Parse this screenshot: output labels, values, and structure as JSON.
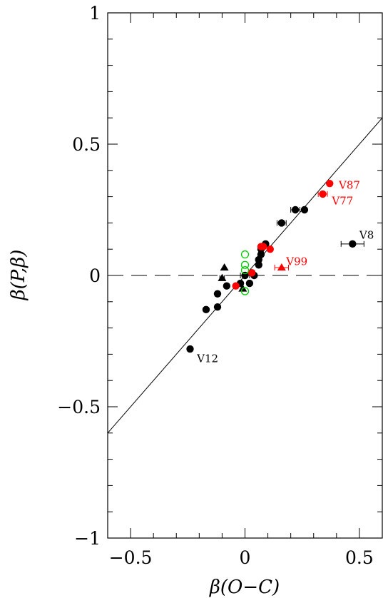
{
  "chart_data": {
    "type": "scatter",
    "title": "",
    "xlabel": "β(O−C)",
    "ylabel": "β(P,β)",
    "xlim": [
      -0.6,
      0.6
    ],
    "ylim": [
      -1,
      1
    ],
    "x_ticks": [
      -0.5,
      0,
      0.5
    ],
    "x_tick_labels": [
      "−0.5",
      "0",
      "0.5"
    ],
    "y_ticks": [
      -1,
      -0.5,
      0,
      0.5,
      1
    ],
    "y_tick_labels": [
      "−1",
      "−0.5",
      "0",
      "0.5",
      "1"
    ],
    "grid": false,
    "reference_lines": [
      {
        "kind": "identity",
        "style": "solid",
        "from": [
          -0.6,
          -0.6
        ],
        "to": [
          0.6,
          0.6
        ]
      },
      {
        "kind": "horizontal",
        "style": "dashed",
        "y": 0
      }
    ],
    "colors": {
      "black": "#000000",
      "red": "#ff0000",
      "green": "#00cc00"
    },
    "series": [
      {
        "marker": "filled-circle",
        "color": "#000000",
        "points": [
          {
            "x": -0.24,
            "y": -0.28
          },
          {
            "x": -0.17,
            "y": -0.13
          },
          {
            "x": -0.12,
            "y": -0.12
          },
          {
            "x": -0.12,
            "y": -0.07,
            "xerr": 0.01
          },
          {
            "x": -0.08,
            "y": -0.04
          },
          {
            "x": -0.02,
            "y": -0.03
          },
          {
            "x": 0.0,
            "y": 0.0,
            "xerr": 0.02
          },
          {
            "x": 0.02,
            "y": -0.03
          },
          {
            "x": 0.03,
            "y": 0.01
          },
          {
            "x": 0.04,
            "y": 0.0
          },
          {
            "x": 0.06,
            "y": 0.04
          },
          {
            "x": 0.06,
            "y": 0.06
          },
          {
            "x": 0.07,
            "y": 0.08
          },
          {
            "x": 0.07,
            "y": 0.1
          },
          {
            "x": 0.09,
            "y": 0.12
          },
          {
            "x": 0.16,
            "y": 0.2,
            "xerr": 0.02
          },
          {
            "x": 0.22,
            "y": 0.25,
            "xerr": 0.02
          },
          {
            "x": 0.26,
            "y": 0.25
          },
          {
            "x": 0.47,
            "y": 0.12,
            "xerr": 0.05
          }
        ]
      },
      {
        "marker": "filled-triangle",
        "color": "#000000",
        "points": [
          {
            "x": -0.09,
            "y": 0.03
          },
          {
            "x": -0.1,
            "y": -0.01,
            "xerr": 0.01
          },
          {
            "x": -0.01,
            "y": -0.05
          }
        ]
      },
      {
        "marker": "filled-circle",
        "color": "#ff0000",
        "points": [
          {
            "x": -0.04,
            "y": -0.04
          },
          {
            "x": 0.03,
            "y": 0.01
          },
          {
            "x": 0.07,
            "y": 0.11
          },
          {
            "x": 0.08,
            "y": 0.11
          },
          {
            "x": 0.11,
            "y": 0.1
          },
          {
            "x": 0.34,
            "y": 0.31,
            "xerr": 0.02
          },
          {
            "x": 0.37,
            "y": 0.35
          }
        ]
      },
      {
        "marker": "filled-triangle",
        "color": "#ff0000",
        "points": [
          {
            "x": 0.16,
            "y": 0.03,
            "xerr": 0.03
          }
        ]
      },
      {
        "marker": "open-circle",
        "color": "#00cc00",
        "points": [
          {
            "x": 0.0,
            "y": 0.08
          },
          {
            "x": 0.0,
            "y": 0.04
          },
          {
            "x": 0.0,
            "y": 0.02
          },
          {
            "x": 0.0,
            "y": -0.06
          }
        ]
      }
    ],
    "annotations": [
      {
        "text": "V12",
        "x": -0.21,
        "y": -0.33,
        "color": "#000000"
      },
      {
        "text": "V8",
        "x": 0.5,
        "y": 0.14,
        "color": "#000000"
      },
      {
        "text": "V87",
        "x": 0.41,
        "y": 0.33,
        "color": "#ff0000"
      },
      {
        "text": "V77",
        "x": 0.38,
        "y": 0.27,
        "color": "#ff0000"
      },
      {
        "text": "V99",
        "x": 0.18,
        "y": 0.04,
        "color": "#ff0000"
      }
    ]
  }
}
